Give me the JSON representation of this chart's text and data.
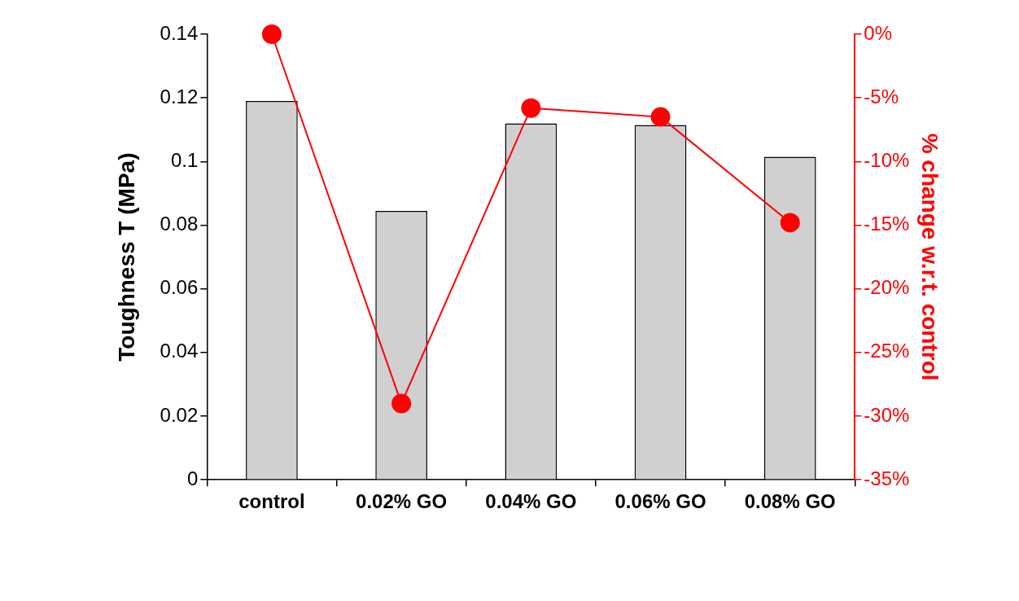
{
  "chart_data": {
    "type": "bar",
    "ylabel": "Toughness T (MPa)",
    "y2label": "% change w.r.t. control",
    "categories": [
      "control",
      "0.02% GO",
      "0.04% GO",
      "0.06% GO",
      "0.08% GO"
    ],
    "series": [
      {
        "color": "#d0d0d0",
        "values": [
          0.119,
          0.0845,
          0.112,
          0.1115,
          0.1015
        ]
      },
      {
        "type": "line",
        "axis": "y2",
        "color": "#ff0000",
        "marker": "circle",
        "values": [
          0,
          -29,
          -5.8,
          -6.5,
          -14.8
        ]
      }
    ],
    "ylim": [
      0,
      0.14
    ],
    "yticks": [
      0,
      0.02,
      0.04,
      0.06,
      0.08,
      0.1,
      0.12,
      0.14
    ],
    "y2lim": [
      -35,
      0
    ],
    "y2ticks": [
      {
        "value": -35,
        "label": "-35%"
      },
      {
        "value": -30,
        "label": "-30%"
      },
      {
        "value": -25,
        "label": "-25%"
      },
      {
        "value": -20,
        "label": "-20%"
      },
      {
        "value": -15,
        "label": "-15%"
      },
      {
        "value": -10,
        "label": "-10%"
      },
      {
        "value": -5,
        "label": "-5%"
      },
      {
        "value": 0,
        "label": "0%"
      }
    ],
    "grid": false,
    "legend": false
  }
}
